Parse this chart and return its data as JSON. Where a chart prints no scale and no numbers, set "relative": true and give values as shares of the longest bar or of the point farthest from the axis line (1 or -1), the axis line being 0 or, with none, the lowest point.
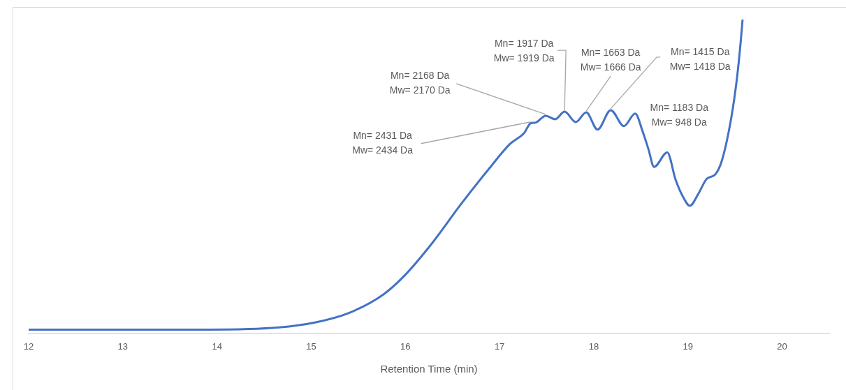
{
  "chart_data": {
    "type": "line",
    "relative": true,
    "xlabel": "Retention Time (min)",
    "xlim": [
      12,
      20.5
    ],
    "xticks": [
      12,
      13,
      14,
      15,
      16,
      17,
      18,
      19,
      20
    ],
    "grid": false,
    "legend": false,
    "marker": "none",
    "x": [
      12,
      13.92,
      14.66,
      15.03,
      15.4,
      15.77,
      15.99,
      16.29,
      16.59,
      16.89,
      17.11,
      17.26,
      17.33,
      17.38,
      17.49,
      17.59,
      17.69,
      17.81,
      17.92,
      18.04,
      18.18,
      18.32,
      18.44,
      18.52,
      18.58,
      18.64,
      18.78,
      18.87,
      18.95,
      19.02,
      19.11,
      19.2,
      19.29,
      19.36,
      19.46,
      19.52,
      19.56,
      19.58
    ],
    "series": [
      {
        "color": "#4472c4",
        "values": [
          0.011,
          0.011,
          0.018,
          0.033,
          0.064,
          0.124,
          0.183,
          0.289,
          0.411,
          0.525,
          0.603,
          0.638,
          0.669,
          0.671,
          0.693,
          0.682,
          0.706,
          0.673,
          0.704,
          0.649,
          0.711,
          0.66,
          0.7,
          0.642,
          0.587,
          0.53,
          0.576,
          0.488,
          0.433,
          0.406,
          0.444,
          0.492,
          0.506,
          0.55,
          0.687,
          0.812,
          0.929,
          1.0
        ]
      }
    ],
    "annotations": [
      {
        "text": "Mn= 2431 Da\nMw= 2434 Da",
        "x": 17.33,
        "y": 0.669
      },
      {
        "text": "Mn= 2168 Da\nMw= 2170 Da",
        "x": 17.49,
        "y": 0.693
      },
      {
        "text": "Mn= 1917 Da\nMw= 1919 Da",
        "x": 17.69,
        "y": 0.706
      },
      {
        "text": "Mn= 1663 Da\nMw= 1666 Da",
        "x": 17.92,
        "y": 0.704
      },
      {
        "text": "Mn= 1415 Da\nMw= 1418 Da",
        "x": 18.18,
        "y": 0.711
      },
      {
        "text": "Mn= 1183 Da\nMw= 948 Da",
        "x": 18.44,
        "y": 0.7
      }
    ]
  }
}
